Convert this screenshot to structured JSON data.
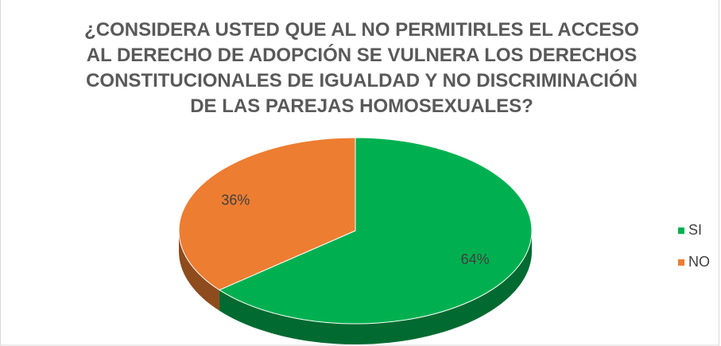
{
  "chart_data": {
    "type": "pie",
    "title": "¿CONSIDERA USTED QUE AL NO PERMITIRLES EL ACCESO AL DERECHO DE ADOPCIÓN SE VULNERA LOS DERECHOS CONSTITUCIONALES DE IGUALDAD Y NO DISCRIMINACIÓN DE LAS PAREJAS HOMOSEXUALES?",
    "categories": [
      "SI",
      "NO"
    ],
    "values": [
      64,
      36
    ],
    "value_labels": [
      "64%",
      "36%"
    ],
    "colors": [
      "#00b050",
      "#ed7d31"
    ],
    "legend": "right"
  }
}
